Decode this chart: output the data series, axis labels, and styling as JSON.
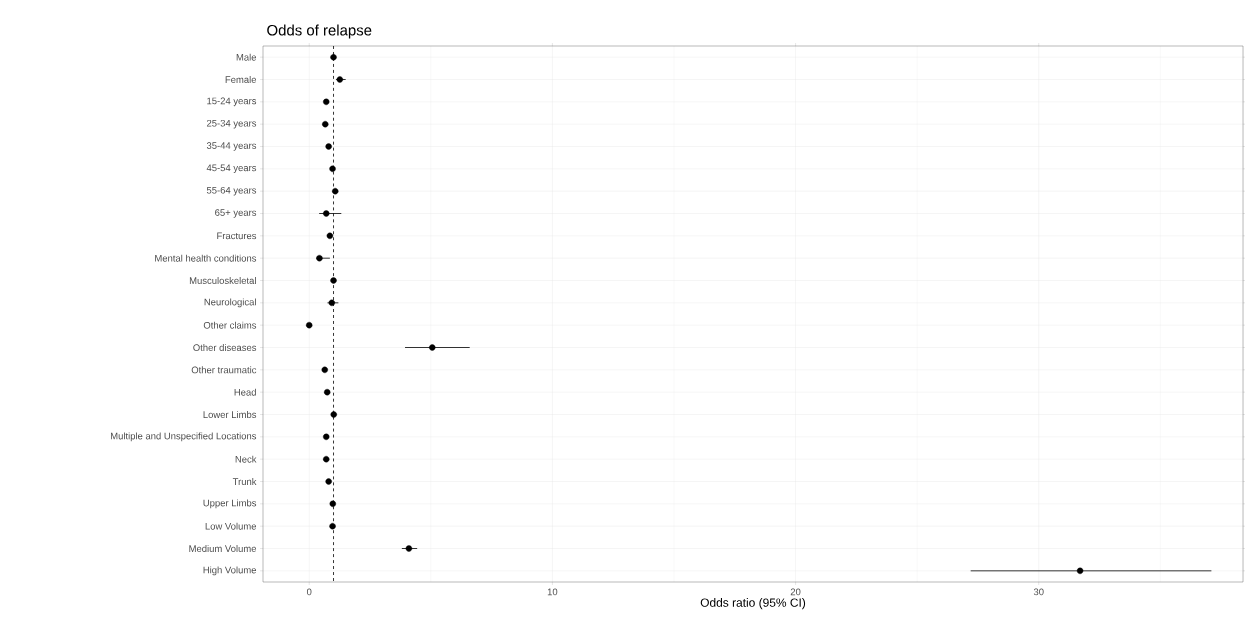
{
  "chart_data": {
    "type": "scatter",
    "title": "Odds of relapse",
    "xlabel": "Odds ratio (95% CI)",
    "orientation": "horizontal",
    "categories": [
      "Male",
      "Female",
      "15-24 years",
      "25-34 years",
      "35-44 years",
      "45-54 years",
      "55-64 years",
      "65+ years",
      "Fractures",
      "Mental health conditions",
      "Musculoskeletal",
      "Neurological",
      "Other claims",
      "Other diseases",
      "Other traumatic",
      "Head",
      "Lower Limbs",
      "Multiple and Unspecified Locations",
      "Neck",
      "Trunk",
      "Upper Limbs",
      "Low Volume",
      "Medium Volume",
      "High Volume"
    ],
    "values": [
      1.0,
      1.26,
      0.7,
      0.66,
      0.8,
      0.96,
      1.07,
      0.7,
      0.85,
      0.42,
      1.0,
      0.93,
      0.0,
      5.06,
      0.64,
      0.74,
      1.01,
      0.7,
      0.7,
      0.8,
      0.97,
      0.96,
      4.1,
      31.7
    ],
    "errors": [
      null,
      [
        1.1,
        1.5
      ],
      null,
      null,
      null,
      null,
      null,
      [
        0.41,
        1.32
      ],
      null,
      [
        0.3,
        0.85
      ],
      null,
      [
        0.75,
        1.2
      ],
      null,
      [
        3.94,
        6.6
      ],
      null,
      null,
      null,
      null,
      null,
      null,
      null,
      null,
      [
        3.81,
        4.44
      ],
      [
        27.2,
        37.1
      ]
    ],
    "color": "#000000",
    "marker": "circle",
    "grid": true,
    "xlim": [
      -1.9,
      38.4
    ],
    "xticks": [
      0,
      10,
      20,
      30
    ],
    "ref_lines": [
      {
        "axis": "x",
        "value": 1,
        "line_style": "dashed",
        "color": "#000000"
      }
    ]
  }
}
